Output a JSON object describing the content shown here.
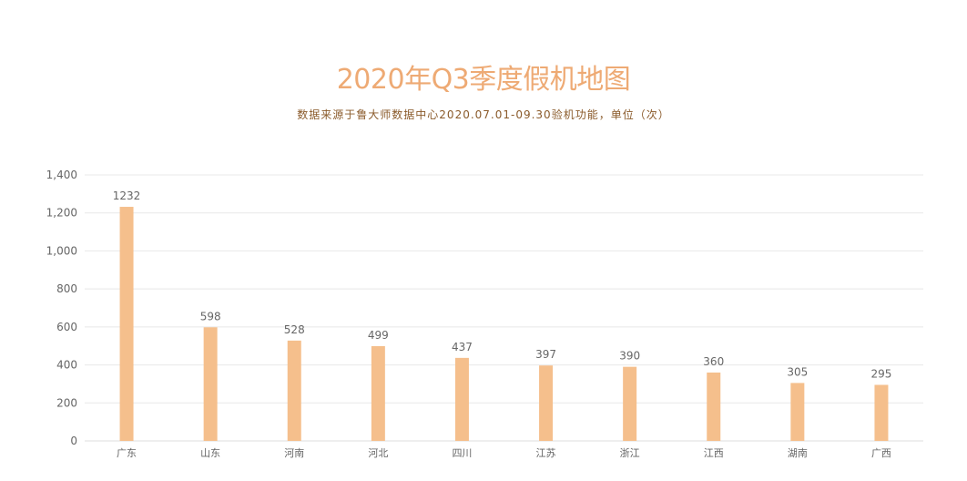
{
  "chart_data": {
    "type": "bar",
    "title": "2020年Q3季度假机地图",
    "subtitle": "数据来源于鲁大师数据中心2020.07.01-09.30验机功能，单位（次）",
    "categories": [
      "广东",
      "山东",
      "河南",
      "河北",
      "四川",
      "江苏",
      "浙江",
      "江西",
      "湖南",
      "广西"
    ],
    "values": [
      1232,
      598,
      528,
      499,
      437,
      397,
      390,
      360,
      305,
      295
    ],
    "ylim": [
      0,
      1400
    ],
    "yticks": [
      0,
      200,
      400,
      600,
      800,
      1000,
      1200,
      1400
    ],
    "ytick_labels": [
      "0",
      "200",
      "400",
      "600",
      "800",
      "1,000",
      "1,200",
      "1,400"
    ],
    "grid": true,
    "data_labels": true,
    "colors": {
      "bar": "#f5bf8c",
      "title": "#eeaa74",
      "subtitle": "#8a5a2a",
      "grid": "#e8e8e8",
      "text": "#666666"
    }
  }
}
